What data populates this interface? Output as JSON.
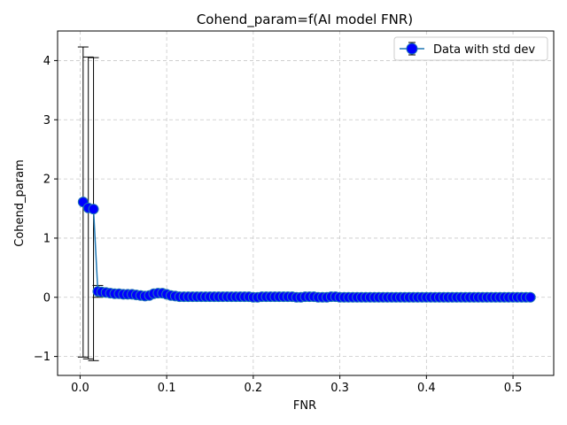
{
  "chart_data": {
    "type": "scatter",
    "title": "Cohend_param=f(AI model FNR)",
    "xlabel": "FNR",
    "ylabel": "Cohend_param",
    "xlim": [
      -0.026,
      0.547
    ],
    "ylim": [
      -1.32,
      4.5
    ],
    "xticks": [
      0.0,
      0.1,
      0.2,
      0.3,
      0.4,
      0.5
    ],
    "xtick_labels": [
      "0.0",
      "0.1",
      "0.2",
      "0.3",
      "0.4",
      "0.5"
    ],
    "yticks": [
      -1,
      0,
      1,
      2,
      3,
      4
    ],
    "ytick_labels": [
      "−1",
      "0",
      "1",
      "2",
      "3",
      "4"
    ],
    "grid": true,
    "legend": {
      "position": "top-right",
      "entries": [
        "Data with std dev"
      ]
    },
    "colors": {
      "line": "#1f77b4",
      "marker": "#0000ff",
      "errorbar": "#000000",
      "grid": "#c8c8c8"
    },
    "series": [
      {
        "name": "Data with std dev",
        "x": [
          0.0035,
          0.0095,
          0.0155,
          0.0205,
          0.025,
          0.03,
          0.035,
          0.04,
          0.045,
          0.05,
          0.055,
          0.06,
          0.065,
          0.07,
          0.075,
          0.08,
          0.085,
          0.09,
          0.095,
          0.1,
          0.105,
          0.11,
          0.115,
          0.12,
          0.125,
          0.13,
          0.135,
          0.14,
          0.145,
          0.15,
          0.155,
          0.16,
          0.165,
          0.17,
          0.175,
          0.18,
          0.185,
          0.19,
          0.195,
          0.2,
          0.205,
          0.21,
          0.215,
          0.22,
          0.225,
          0.23,
          0.235,
          0.24,
          0.245,
          0.25,
          0.255,
          0.26,
          0.265,
          0.27,
          0.275,
          0.28,
          0.285,
          0.29,
          0.295,
          0.3,
          0.305,
          0.31,
          0.315,
          0.32,
          0.325,
          0.33,
          0.335,
          0.34,
          0.345,
          0.35,
          0.355,
          0.36,
          0.365,
          0.37,
          0.375,
          0.38,
          0.385,
          0.39,
          0.395,
          0.4,
          0.405,
          0.41,
          0.415,
          0.42,
          0.425,
          0.43,
          0.435,
          0.44,
          0.445,
          0.45,
          0.455,
          0.46,
          0.465,
          0.47,
          0.475,
          0.48,
          0.485,
          0.49,
          0.495,
          0.5,
          0.505,
          0.51,
          0.515,
          0.52
        ],
        "y": [
          1.61,
          1.51,
          1.49,
          0.1,
          0.09,
          0.08,
          0.07,
          0.06,
          0.06,
          0.05,
          0.05,
          0.05,
          0.04,
          0.03,
          0.02,
          0.03,
          0.06,
          0.07,
          0.07,
          0.05,
          0.03,
          0.02,
          0.01,
          0.01,
          0.01,
          0.01,
          0.01,
          0.01,
          0.01,
          0.01,
          0.01,
          0.01,
          0.01,
          0.01,
          0.01,
          0.01,
          0.01,
          0.01,
          0.01,
          0.0,
          0.0,
          0.01,
          0.01,
          0.01,
          0.01,
          0.01,
          0.01,
          0.01,
          0.01,
          0.0,
          0.0,
          0.01,
          0.01,
          0.01,
          0.0,
          0.0,
          0.0,
          0.01,
          0.01,
          0.0,
          0.0,
          0.0,
          0.0,
          0.0,
          0.0,
          0.0,
          0.0,
          0.0,
          0.0,
          0.0,
          0.0,
          0.0,
          0.0,
          0.0,
          0.0,
          0.0,
          0.0,
          0.0,
          0.0,
          0.0,
          0.0,
          0.0,
          0.0,
          0.0,
          0.0,
          0.0,
          0.0,
          0.0,
          0.0,
          0.0,
          0.0,
          0.0,
          0.0,
          0.0,
          0.0,
          0.0,
          0.0,
          0.0,
          0.0,
          0.0,
          0.0,
          0.0,
          0.0,
          0.0
        ],
        "yerr": [
          2.62,
          2.55,
          2.56,
          0.1,
          0.03,
          0.02,
          0.02,
          0.02,
          0.02,
          0.02,
          0.02,
          0.02,
          0.02,
          0.02,
          0.02,
          0.02,
          0.02,
          0.02,
          0.02,
          0.02,
          0.02,
          0.02,
          0.02,
          0.02,
          0.02,
          0.02,
          0.02,
          0.02,
          0.02,
          0.02,
          0.02,
          0.02,
          0.02,
          0.02,
          0.02,
          0.02,
          0.02,
          0.02,
          0.02,
          0.02,
          0.02,
          0.02,
          0.02,
          0.02,
          0.02,
          0.02,
          0.02,
          0.02,
          0.02,
          0.02,
          0.02,
          0.02,
          0.02,
          0.02,
          0.02,
          0.02,
          0.02,
          0.02,
          0.02,
          0.02,
          0.02,
          0.02,
          0.02,
          0.02,
          0.02,
          0.02,
          0.02,
          0.02,
          0.02,
          0.02,
          0.02,
          0.02,
          0.02,
          0.02,
          0.02,
          0.02,
          0.02,
          0.02,
          0.02,
          0.02,
          0.02,
          0.02,
          0.02,
          0.02,
          0.02,
          0.02,
          0.02,
          0.02,
          0.02,
          0.02,
          0.02,
          0.02,
          0.02,
          0.02,
          0.02,
          0.02,
          0.02,
          0.02,
          0.02,
          0.02,
          0.02,
          0.02,
          0.02,
          0.02
        ]
      }
    ]
  }
}
